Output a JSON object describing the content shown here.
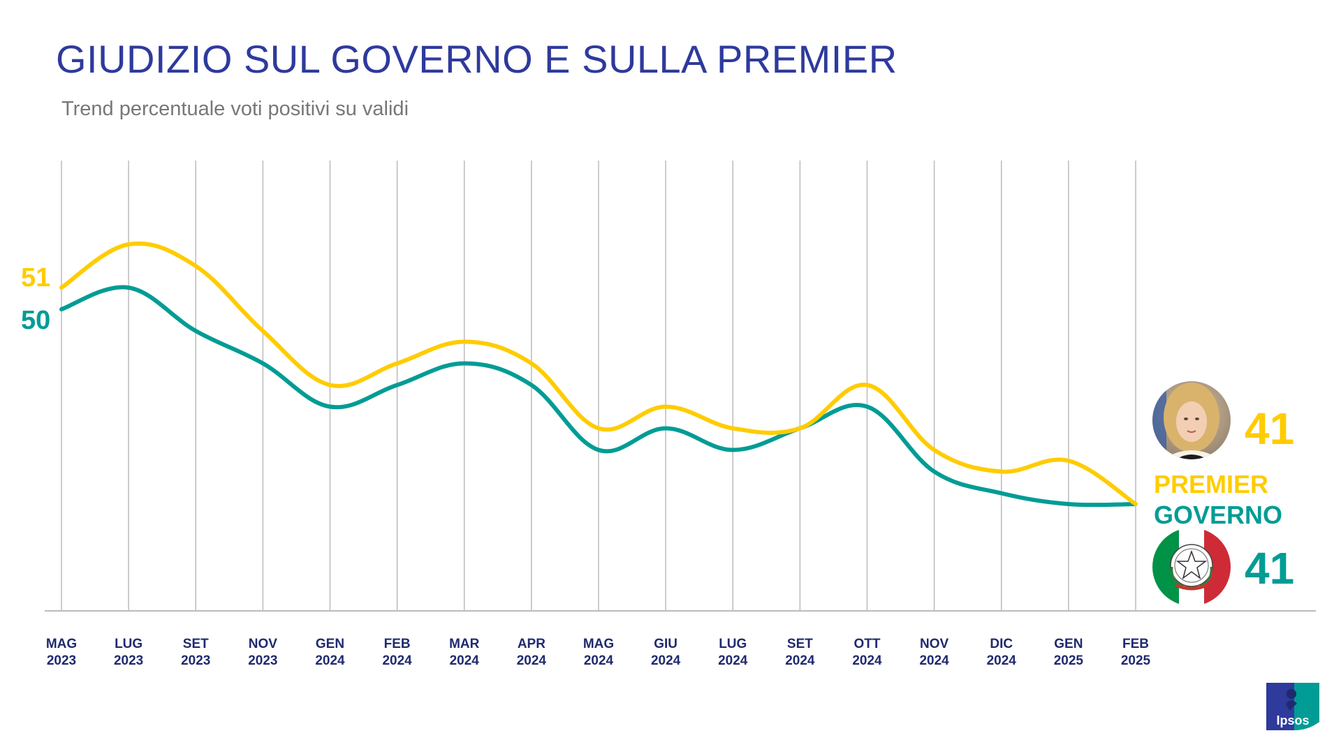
{
  "header": {
    "title": "GIUDIZIO SUL GOVERNO E SULLA PREMIER",
    "subtitle": "Trend percentuale voti positivi su validi"
  },
  "colors": {
    "title": "#2E3A9C",
    "subtitle": "#777777",
    "premier": "#FFCC00",
    "governo": "#009C95",
    "grid": "#BBBBBB",
    "axis_text": "#1F2A6E",
    "flag_green": "#009246",
    "flag_red": "#CE2B37"
  },
  "chart_data": {
    "type": "line",
    "title": "GIUDIZIO SUL GOVERNO E SULLA PREMIER",
    "subtitle": "Trend percentuale voti positivi su validi",
    "xlabel": "",
    "ylabel": "",
    "grid": "vertical",
    "ylim": [
      37,
      56
    ],
    "categories": [
      {
        "month": "MAG",
        "year": "2023"
      },
      {
        "month": "LUG",
        "year": "2023"
      },
      {
        "month": "SET",
        "year": "2023"
      },
      {
        "month": "NOV",
        "year": "2023"
      },
      {
        "month": "GEN",
        "year": "2024"
      },
      {
        "month": "FEB",
        "year": "2024"
      },
      {
        "month": "MAR",
        "year": "2024"
      },
      {
        "month": "APR",
        "year": "2024"
      },
      {
        "month": "MAG",
        "year": "2024"
      },
      {
        "month": "GIU",
        "year": "2024"
      },
      {
        "month": "LUG",
        "year": "2024"
      },
      {
        "month": "SET",
        "year": "2024"
      },
      {
        "month": "OTT",
        "year": "2024"
      },
      {
        "month": "NOV",
        "year": "2024"
      },
      {
        "month": "DIC",
        "year": "2024"
      },
      {
        "month": "GEN",
        "year": "2025"
      },
      {
        "month": "FEB",
        "year": "2025"
      }
    ],
    "series": [
      {
        "name": "PREMIER",
        "values": [
          51,
          53,
          52,
          49,
          46.5,
          47.5,
          48.5,
          47.5,
          44.5,
          45.5,
          44.5,
          44.5,
          46.5,
          43.5,
          42.5,
          43,
          41
        ],
        "start_label": "51",
        "end_value": "41"
      },
      {
        "name": "GOVERNO",
        "values": [
          50,
          51,
          49,
          47.5,
          45.5,
          46.5,
          47.5,
          46.5,
          43.5,
          44.5,
          43.5,
          44.5,
          45.5,
          42.5,
          41.5,
          41,
          41
        ],
        "start_label": "50",
        "end_value": "41"
      }
    ]
  },
  "legend": {
    "premier_label": "PREMIER",
    "premier_value": "41",
    "governo_label": "GOVERNO",
    "governo_value": "41",
    "premier_icon": "premier-portrait-icon",
    "governo_icon": "italian-republic-emblem-icon"
  },
  "logo": {
    "text": "Ipsos",
    "icon": "ipsos-logo-icon"
  }
}
